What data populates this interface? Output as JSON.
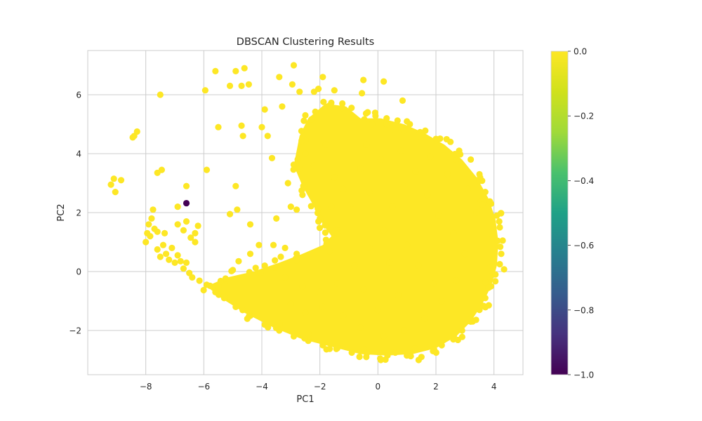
{
  "chart_data": {
    "type": "scatter",
    "title": "DBSCAN Clustering Results",
    "xlabel": "PC1",
    "ylabel": "PC2",
    "xlim": [
      -10,
      5
    ],
    "ylim": [
      -3.5,
      7.5
    ],
    "x_ticks": [
      -8,
      -6,
      -4,
      -2,
      0,
      2,
      4
    ],
    "y_ticks": [
      -2,
      0,
      2,
      4,
      6
    ],
    "grid": true,
    "colorbar": {
      "colormap": "viridis",
      "range": [
        -1.0,
        0.0
      ],
      "ticks": [
        0.0,
        -0.2,
        -0.4,
        -0.6,
        -0.8,
        -1.0
      ],
      "tick_labels": [
        "0.0",
        "−0.2",
        "−0.4",
        "−0.6",
        "−0.8",
        "−1.0"
      ]
    },
    "colors": {
      "cluster": "#fde725",
      "noise": "#440154"
    },
    "series": [
      {
        "cluster_label": 0,
        "points": [
          [
            -9.2,
            2.95
          ],
          [
            -9.1,
            3.15
          ],
          [
            -9.05,
            2.7
          ],
          [
            -8.85,
            3.1
          ],
          [
            -8.45,
            4.55
          ],
          [
            -8.4,
            4.6
          ],
          [
            -8.3,
            4.75
          ],
          [
            -7.5,
            6.0
          ],
          [
            -7.45,
            3.45
          ],
          [
            -7.6,
            3.35
          ],
          [
            -8.0,
            1.0
          ],
          [
            -7.95,
            1.3
          ],
          [
            -7.9,
            1.6
          ],
          [
            -7.85,
            1.2
          ],
          [
            -7.8,
            1.8
          ],
          [
            -7.75,
            2.1
          ],
          [
            -7.7,
            1.45
          ],
          [
            -7.6,
            0.75
          ],
          [
            -7.5,
            0.5
          ],
          [
            -7.4,
            0.9
          ],
          [
            -7.3,
            0.6
          ],
          [
            -7.2,
            0.4
          ],
          [
            -7.1,
            0.8
          ],
          [
            -7.0,
            0.3
          ],
          [
            -6.9,
            0.55
          ],
          [
            -6.8,
            0.35
          ],
          [
            -6.7,
            0.1
          ],
          [
            -6.6,
            0.3
          ],
          [
            -6.5,
            -0.05
          ],
          [
            -6.4,
            -0.2
          ],
          [
            -7.6,
            1.35
          ],
          [
            -7.35,
            1.3
          ],
          [
            -6.9,
            1.6
          ],
          [
            -6.7,
            1.4
          ],
          [
            -6.6,
            1.7
          ],
          [
            -6.45,
            1.15
          ],
          [
            -6.3,
            1.3
          ],
          [
            -6.2,
            1.55
          ],
          [
            -6.6,
            2.9
          ],
          [
            -6.9,
            2.2
          ],
          [
            -6.3,
            1.0
          ],
          [
            -5.6,
            6.8
          ],
          [
            -5.95,
            6.15
          ],
          [
            -5.5,
            4.9
          ],
          [
            -5.9,
            3.45
          ],
          [
            -5.1,
            6.3
          ],
          [
            -4.9,
            6.8
          ],
          [
            -4.7,
            6.3
          ],
          [
            -4.6,
            6.9
          ],
          [
            -4.45,
            6.35
          ],
          [
            -4.7,
            4.95
          ],
          [
            -4.65,
            4.6
          ],
          [
            -4.0,
            4.9
          ],
          [
            -3.9,
            5.5
          ],
          [
            -3.8,
            4.6
          ],
          [
            -3.65,
            3.85
          ],
          [
            -4.9,
            2.9
          ],
          [
            -5.1,
            1.95
          ],
          [
            -4.85,
            2.1
          ],
          [
            -4.4,
            1.6
          ],
          [
            -4.1,
            0.9
          ],
          [
            -3.4,
            6.6
          ],
          [
            -3.3,
            5.6
          ],
          [
            -2.9,
            7.0
          ],
          [
            -2.95,
            6.35
          ],
          [
            -2.7,
            6.1
          ],
          [
            -2.5,
            5.3
          ],
          [
            -2.2,
            6.1
          ],
          [
            -2.05,
            6.2
          ],
          [
            -1.9,
            6.6
          ],
          [
            -1.5,
            6.15
          ],
          [
            -0.5,
            6.5
          ],
          [
            -0.55,
            6.05
          ],
          [
            0.2,
            6.45
          ],
          [
            0.85,
            5.8
          ],
          [
            -5.9,
            -0.45
          ],
          [
            -5.5,
            -0.5
          ],
          [
            -5.2,
            -0.3
          ],
          [
            -5.0,
            0.05
          ],
          [
            -4.8,
            0.35
          ],
          [
            -4.4,
            0.6
          ],
          [
            -3.9,
            0.2
          ],
          [
            -3.6,
            0.9
          ],
          [
            -3.2,
            0.8
          ],
          [
            -2.8,
            0.6
          ],
          [
            -3.5,
            1.8
          ],
          [
            -3.0,
            2.2
          ],
          [
            -2.6,
            2.6
          ],
          [
            -2.8,
            2.1
          ],
          [
            -3.1,
            3.0
          ],
          [
            -2.7,
            3.5
          ],
          [
            -2.5,
            4.0
          ],
          [
            -2.2,
            3.6
          ],
          [
            -1.8,
            4.3
          ],
          [
            -1.5,
            3.2
          ],
          [
            -1.2,
            2.8
          ],
          [
            -1.6,
            2.2
          ],
          [
            -2.0,
            1.8
          ],
          [
            -1.4,
            1.4
          ],
          [
            -0.9,
            2.3
          ],
          [
            -0.6,
            3.5
          ],
          [
            -0.4,
            4.3
          ],
          [
            -0.2,
            5.0
          ],
          [
            0.3,
            5.2
          ],
          [
            0.6,
            4.8
          ],
          [
            1.1,
            5.0
          ],
          [
            1.5,
            4.6
          ],
          [
            2.0,
            4.5
          ],
          [
            2.5,
            4.4
          ],
          [
            2.8,
            4.1
          ],
          [
            3.2,
            3.8
          ],
          [
            3.5,
            3.3
          ],
          [
            3.7,
            2.7
          ],
          [
            3.9,
            2.3
          ],
          [
            4.1,
            1.9
          ],
          [
            4.2,
            1.5
          ],
          [
            4.3,
            1.05
          ],
          [
            4.25,
            0.6
          ],
          [
            4.2,
            0.25
          ],
          [
            4.05,
            -0.1
          ],
          [
            3.9,
            -0.5
          ],
          [
            3.7,
            -0.9
          ],
          [
            3.5,
            -1.3
          ],
          [
            3.2,
            -1.7
          ],
          [
            2.9,
            -2.0
          ],
          [
            2.6,
            -2.3
          ],
          [
            2.2,
            -2.5
          ],
          [
            1.9,
            -2.7
          ],
          [
            1.5,
            -2.9
          ],
          [
            1.0,
            -2.85
          ],
          [
            0.6,
            -2.75
          ],
          [
            0.1,
            -3.0
          ],
          [
            -0.4,
            -2.9
          ],
          [
            -0.9,
            -2.75
          ],
          [
            -1.4,
            -2.6
          ],
          [
            -1.9,
            -2.5
          ],
          [
            -2.4,
            -2.35
          ],
          [
            -2.9,
            -2.2
          ],
          [
            -3.4,
            -2.0
          ],
          [
            -3.9,
            -1.8
          ],
          [
            -4.4,
            -1.5
          ],
          [
            -4.9,
            -1.2
          ],
          [
            -5.3,
            -0.9
          ],
          [
            -5.6,
            -0.7
          ],
          [
            -3.2,
            -0.2
          ],
          [
            -2.6,
            -0.5
          ],
          [
            -2.0,
            -0.7
          ],
          [
            -1.4,
            -0.4
          ],
          [
            -0.8,
            0.2
          ],
          [
            -0.3,
            0.8
          ],
          [
            0.2,
            1.4
          ],
          [
            0.5,
            2.2
          ],
          [
            0.9,
            2.9
          ],
          [
            1.3,
            3.4
          ],
          [
            1.7,
            2.6
          ],
          [
            2.1,
            1.9
          ],
          [
            2.6,
            1.3
          ],
          [
            3.0,
            0.6
          ],
          [
            2.7,
            -0.3
          ],
          [
            2.2,
            -1.0
          ],
          [
            1.6,
            -1.6
          ],
          [
            0.9,
            -2.0
          ],
          [
            0.2,
            -2.2
          ],
          [
            -0.6,
            -1.9
          ],
          [
            -1.2,
            -1.5
          ],
          [
            -1.9,
            -1.2
          ],
          [
            -2.5,
            -1.4
          ],
          [
            -3.0,
            -1.1
          ],
          [
            0.4,
            0.3
          ],
          [
            1.0,
            0.9
          ],
          [
            1.4,
            0.2
          ],
          [
            1.9,
            -0.4
          ],
          [
            0.7,
            -0.8
          ],
          [
            0.0,
            -1.3
          ],
          [
            -0.5,
            -0.6
          ],
          [
            3.4,
            2.0
          ],
          [
            3.1,
            2.8
          ],
          [
            2.4,
            3.3
          ],
          [
            1.8,
            3.9
          ],
          [
            0.8,
            4.1
          ],
          [
            0.1,
            3.8
          ],
          [
            -0.3,
            2.7
          ]
        ]
      },
      {
        "cluster_label": -1,
        "points": [
          [
            -6.6,
            2.32
          ]
        ]
      }
    ]
  }
}
